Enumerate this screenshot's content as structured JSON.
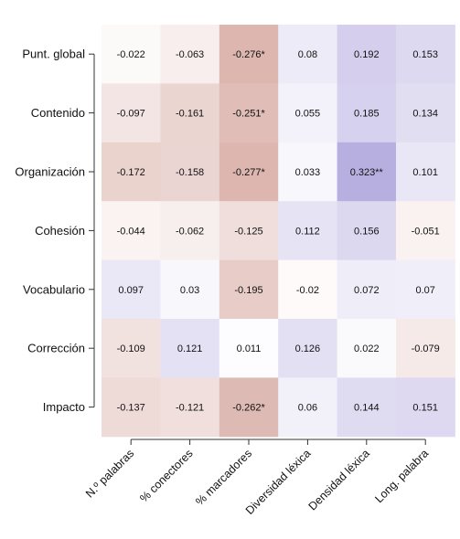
{
  "chart_data": {
    "type": "heatmap",
    "title": "",
    "xlabel": "",
    "ylabel": "",
    "x_categories": [
      "N.º palabras",
      "% conectores",
      "% marcadores",
      "Diversidad léxica",
      "Densidad léxica",
      "Long. palabra"
    ],
    "y_categories": [
      "Punt. global",
      "Contenido",
      "Organización",
      "Cohesión",
      "Vocabulario",
      "Corrección",
      "Impacto"
    ],
    "values": [
      [
        -0.022,
        -0.063,
        -0.276,
        0.08,
        0.192,
        0.153
      ],
      [
        -0.097,
        -0.161,
        -0.251,
        0.055,
        0.185,
        0.134
      ],
      [
        -0.172,
        -0.158,
        -0.277,
        0.033,
        0.323,
        0.101
      ],
      [
        -0.044,
        -0.062,
        -0.125,
        0.112,
        0.156,
        -0.051
      ],
      [
        0.097,
        0.03,
        -0.195,
        -0.02,
        0.072,
        0.07
      ],
      [
        -0.109,
        0.121,
        0.011,
        0.126,
        0.022,
        -0.079
      ],
      [
        -0.137,
        -0.121,
        -0.262,
        0.06,
        0.144,
        0.151
      ]
    ],
    "labels": [
      [
        "-0.022",
        "-0.063",
        "-0.276*",
        "0.08",
        "0.192",
        "0.153"
      ],
      [
        "-0.097",
        "-0.161",
        "-0.251*",
        "0.055",
        "0.185",
        "0.134"
      ],
      [
        "-0.172",
        "-0.158",
        "-0.277*",
        "0.033",
        "0.323**",
        "0.101"
      ],
      [
        "-0.044",
        "-0.062",
        "-0.125",
        "0.112",
        "0.156",
        "-0.051"
      ],
      [
        "0.097",
        "0.03",
        "-0.195",
        "-0.02",
        "0.072",
        "0.07"
      ],
      [
        "-0.109",
        "0.121",
        "0.011",
        "0.126",
        "0.022",
        "-0.079"
      ],
      [
        "-0.137",
        "-0.121",
        "-0.262*",
        "0.06",
        "0.144",
        "0.151"
      ]
    ],
    "color_scale": {
      "negative": "#d6a8a0",
      "neutral": "#ffffff",
      "positive": "#b6ade0",
      "range": [
        -0.33,
        0.33
      ]
    },
    "grid": false,
    "legend": "none"
  }
}
